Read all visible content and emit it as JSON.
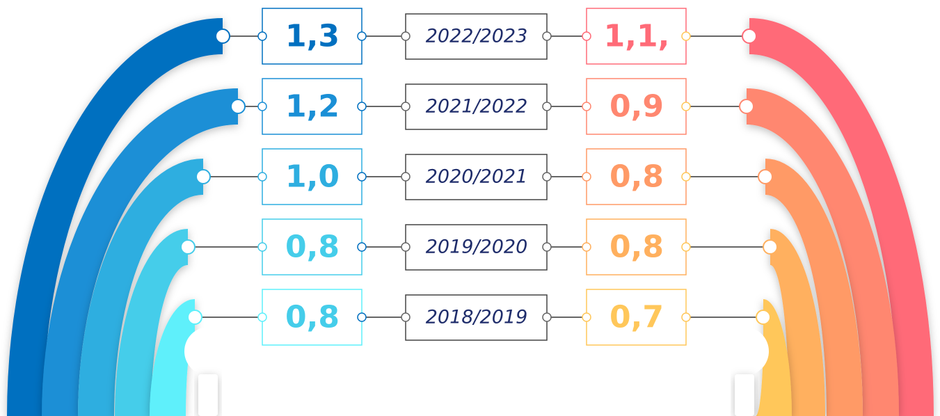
{
  "rows": [
    {
      "year": "2022/2023",
      "left": "1,3",
      "right": "1,1,"
    },
    {
      "year": "2021/2022",
      "left": "1,2",
      "right": "0,9"
    },
    {
      "year": "2020/2021",
      "left": "1,0",
      "right": "0,8"
    },
    {
      "year": "2019/2020",
      "left": "0,8",
      "right": "0,8"
    },
    {
      "year": "2018/2019",
      "left": "0,8",
      "right": "0,7"
    }
  ]
}
